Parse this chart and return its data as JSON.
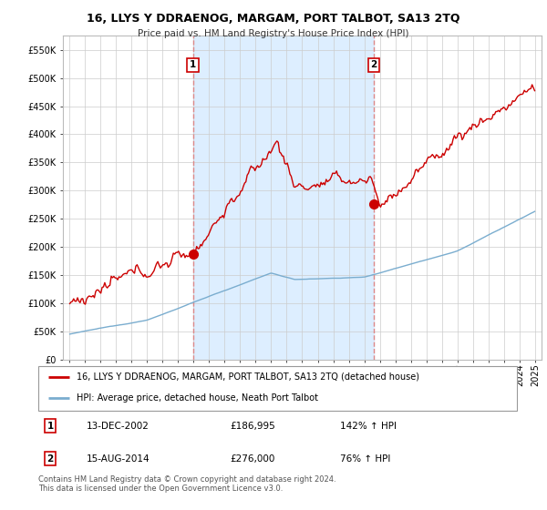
{
  "title": "16, LLYS Y DDRAENOG, MARGAM, PORT TALBOT, SA13 2TQ",
  "subtitle": "Price paid vs. HM Land Registry's House Price Index (HPI)",
  "ylim": [
    0,
    575000
  ],
  "yticks": [
    0,
    50000,
    100000,
    150000,
    200000,
    250000,
    300000,
    350000,
    400000,
    450000,
    500000,
    550000
  ],
  "sale1_date": 2002.96,
  "sale1_price": 186995,
  "sale1_label": "1",
  "sale1_text": "13-DEC-2002",
  "sale1_amount": "£186,995",
  "sale1_hpi": "142% ↑ HPI",
  "sale2_date": 2014.62,
  "sale2_price": 276000,
  "sale2_label": "2",
  "sale2_text": "15-AUG-2014",
  "sale2_amount": "£276,000",
  "sale2_hpi": "76% ↑ HPI",
  "red_line_color": "#cc0000",
  "blue_line_color": "#7aadcf",
  "shade_color": "#ddeeff",
  "vline_color": "#dd8888",
  "legend_label_red": "16, LLYS Y DDRAENOG, MARGAM, PORT TALBOT, SA13 2TQ (detached house)",
  "legend_label_blue": "HPI: Average price, detached house, Neath Port Talbot",
  "footnote": "Contains HM Land Registry data © Crown copyright and database right 2024.\nThis data is licensed under the Open Government Licence v3.0.",
  "background_color": "#ffffff",
  "grid_color": "#cccccc"
}
